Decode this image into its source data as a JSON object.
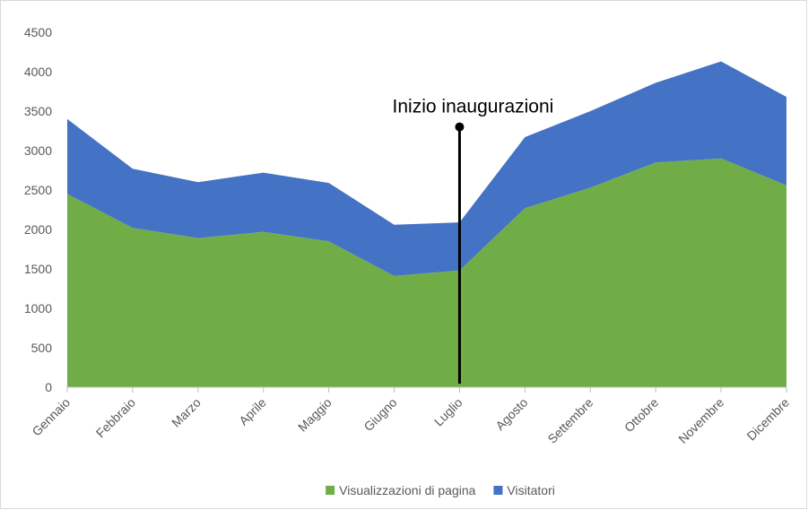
{
  "chart_data": {
    "type": "stacked_area",
    "categories": [
      "Gennaio",
      "Febbraio",
      "Marzo",
      "Aprile",
      "Maggio",
      "Giugno",
      "Luglio",
      "Agosto",
      "Settembre",
      "Ottobre",
      "Novembre",
      "Dicembre"
    ],
    "series": [
      {
        "name": "Visualizzazioni di pagina",
        "color": "#70ad47",
        "values": [
          2450,
          2020,
          1890,
          1970,
          1850,
          1410,
          1480,
          2270,
          2530,
          2850,
          2900,
          2560
        ]
      },
      {
        "name": "Visitatori",
        "color": "#4472c4",
        "values": [
          950,
          750,
          710,
          750,
          740,
          650,
          610,
          900,
          970,
          1010,
          1230,
          1120
        ]
      }
    ],
    "ylim": [
      0,
      4500
    ],
    "yticks": [
      0,
      500,
      1000,
      1500,
      2000,
      2500,
      3000,
      3500,
      4000,
      4500
    ],
    "grid": false,
    "legend": "bottom",
    "annotation": {
      "text": "Inizio inaugurazioni",
      "x": "Luglio",
      "y": 3300
    }
  }
}
